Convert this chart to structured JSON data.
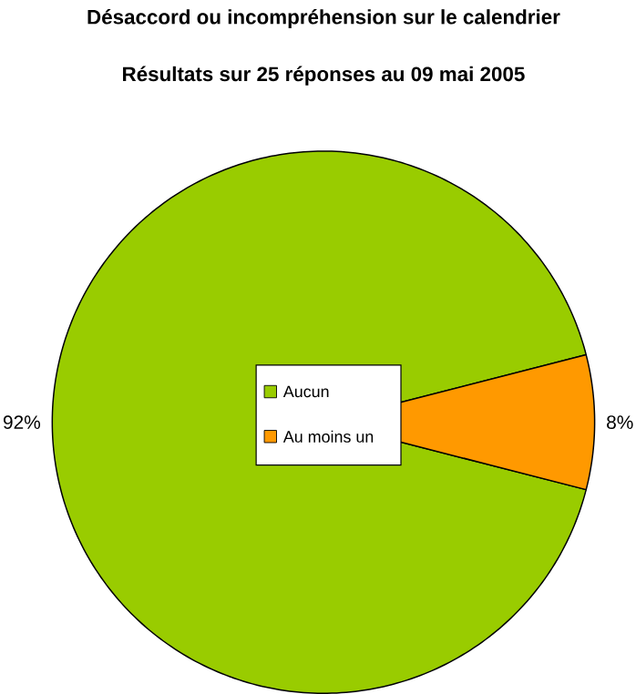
{
  "chart_data": {
    "type": "pie",
    "title": "Désaccord ou incompréhension sur le calendrier",
    "subtitle": "Résultats sur 25 réponses au 09 mai 2005",
    "categories": [
      "Aucun",
      "Au moins un"
    ],
    "values": [
      92,
      8
    ],
    "colors": [
      "#99cc00",
      "#ff9900"
    ],
    "value_labels": [
      "92%",
      "8%"
    ],
    "legend": "center"
  }
}
